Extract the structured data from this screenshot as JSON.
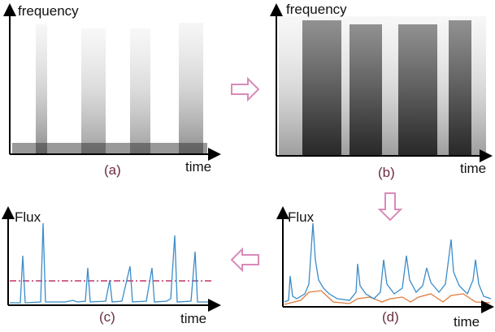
{
  "panels": [
    {
      "y_label": "frequency",
      "x_label": "time",
      "caption": "(a)"
    },
    {
      "y_label": "frequency",
      "x_label": "time",
      "caption": "(b)"
    },
    {
      "y_label": "Flux",
      "x_label": "time",
      "caption": "(c)"
    },
    {
      "y_label": "Flux",
      "x_label": "time",
      "caption": "(d)"
    }
  ]
}
